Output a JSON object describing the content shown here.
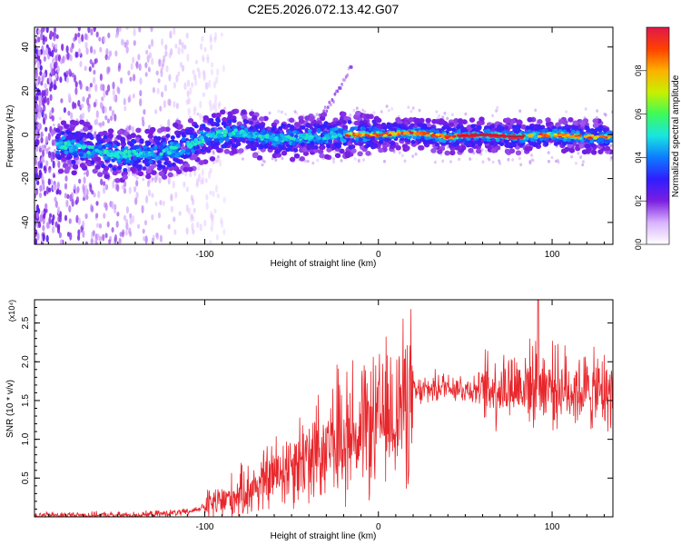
{
  "title": "C2E5.2026.072.13.42.G07",
  "colors": {
    "snr_line": "#e8262b",
    "axis": "#000000",
    "spectrogram_base": "#ffffff"
  },
  "chart_data": [
    {
      "type": "heatmap",
      "name": "spectrogram",
      "xlabel": "Height of straight line (km)",
      "ylabel": "Frequency (Hz)",
      "xlim": [
        -198,
        135
      ],
      "ylim": [
        -50,
        49
      ],
      "x_ticks": [
        -100,
        0,
        100
      ],
      "y_ticks": [
        -40,
        -20,
        0,
        20,
        40
      ],
      "colorbar": {
        "label": "Normalized spectral amplitude",
        "range": [
          0,
          1
        ],
        "ticks": [
          "0.0",
          "0.2",
          "0.4",
          "0.6",
          "0.8"
        ],
        "colormap": [
          "#ffffff",
          "#d9b3ff",
          "#7b1fe0",
          "#2f1dff",
          "#0d7bff",
          "#19e6e0",
          "#3dfa5a",
          "#c8f000",
          "#ffb000",
          "#ff4000",
          "#e0184a"
        ]
      },
      "ridge_center_hz": [
        {
          "x": -180,
          "y": -5
        },
        {
          "x": -150,
          "y": -9
        },
        {
          "x": -130,
          "y": -9
        },
        {
          "x": -110,
          "y": -5
        },
        {
          "x": -95,
          "y": 0
        },
        {
          "x": -80,
          "y": 1
        },
        {
          "x": -60,
          "y": -2
        },
        {
          "x": -40,
          "y": -1
        },
        {
          "x": -20,
          "y": 0
        },
        {
          "x": 0,
          "y": 0
        },
        {
          "x": 20,
          "y": 1
        },
        {
          "x": 40,
          "y": -1
        },
        {
          "x": 60,
          "y": 0
        },
        {
          "x": 80,
          "y": -1
        },
        {
          "x": 100,
          "y": 0
        },
        {
          "x": 120,
          "y": -1
        },
        {
          "x": 135,
          "y": -1
        }
      ]
    },
    {
      "type": "line",
      "name": "snr",
      "xlabel": "Height of straight line (km)",
      "ylabel": "SNR (10 * v/v)",
      "y_multiplier": "(x10⁴)",
      "xlim": [
        -198,
        135
      ],
      "ylim": [
        0,
        2.8
      ],
      "x_ticks": [
        -100,
        0,
        100
      ],
      "y_ticks": [
        "0.5",
        "1.0",
        "1.5",
        "2.0",
        "2.5"
      ],
      "envelope": [
        {
          "x": -198,
          "y": 0.02
        },
        {
          "x": -140,
          "y": 0.02
        },
        {
          "x": -110,
          "y": 0.06
        },
        {
          "x": -90,
          "y": 0.2
        },
        {
          "x": -70,
          "y": 0.4
        },
        {
          "x": -50,
          "y": 0.7
        },
        {
          "x": -30,
          "y": 0.95
        },
        {
          "x": -10,
          "y": 1.1
        },
        {
          "x": 0,
          "y": 1.2
        },
        {
          "x": 10,
          "y": 1.4
        },
        {
          "x": 20,
          "y": 1.58
        },
        {
          "x": 30,
          "y": 1.65
        },
        {
          "x": 40,
          "y": 1.7
        },
        {
          "x": 50,
          "y": 1.65
        },
        {
          "x": 60,
          "y": 1.65
        },
        {
          "x": 70,
          "y": 1.68
        },
        {
          "x": 80,
          "y": 1.7
        },
        {
          "x": 90,
          "y": 1.72
        },
        {
          "x": 100,
          "y": 1.7
        },
        {
          "x": 110,
          "y": 1.65
        },
        {
          "x": 120,
          "y": 1.62
        },
        {
          "x": 135,
          "y": 1.6
        }
      ],
      "peak": {
        "x": 92,
        "y": 2.8
      }
    }
  ]
}
